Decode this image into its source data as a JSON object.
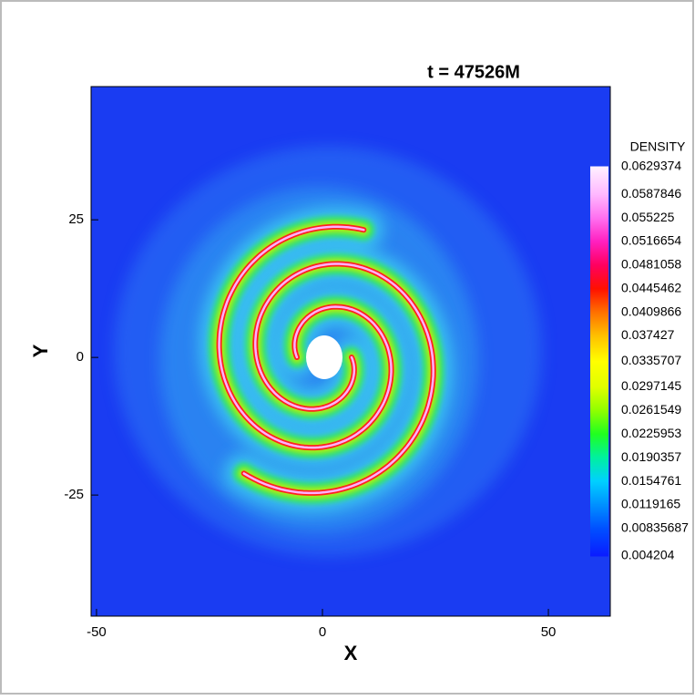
{
  "chart_data": {
    "type": "contour",
    "title": "t = 47526M",
    "x_label": "X",
    "y_label": "Y",
    "xlim": [
      -51.2,
      63.7
    ],
    "ylim": [
      -47,
      49.2
    ],
    "xticks": [
      -50,
      0,
      50
    ],
    "yticks": [
      -25,
      0,
      25
    ],
    "colorbar": {
      "title": "DENSITY",
      "levels": [
        0.0629374,
        0.0587846,
        0.055225,
        0.0516654,
        0.0481058,
        0.0445462,
        0.0409866,
        0.037427,
        0.0335707,
        0.0297145,
        0.0261549,
        0.0225953,
        0.0190357,
        0.0154761,
        0.0119165,
        0.00835687,
        0.004204
      ],
      "colors": [
        "#fff0ff",
        "#ffb8ff",
        "#ff70f0",
        "#ff20c0",
        "#ff0060",
        "#ff1000",
        "#ff7000",
        "#ffc000",
        "#ffff00",
        "#e0ff00",
        "#90ff00",
        "#20ff20",
        "#00f0a0",
        "#00d0ff",
        "#0090ff",
        "#0050ff",
        "#0a1cff"
      ]
    }
  }
}
